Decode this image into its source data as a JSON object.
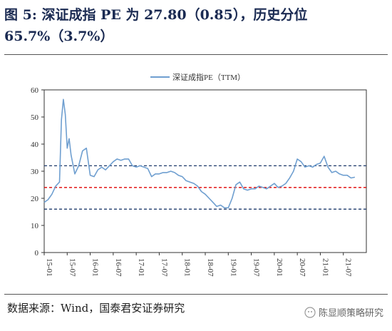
{
  "figure": {
    "title": "图 5: 深证成指 PE 为 27.80（0.85），历史分位 65.7%（3.7%）",
    "source": "数据来源：Wind，国泰君安证券研究",
    "watermark": "陈显顺策略研究"
  },
  "colors": {
    "series": "#6f9fd0",
    "upper_band": "#1f3a6b",
    "mean": "#e00000",
    "lower_band": "#1f3a6b",
    "axis": "#333333"
  },
  "chart_data": {
    "type": "line",
    "legend": "深证成指PE（TTM）",
    "legend_position": "top-center",
    "grid": false,
    "ylim": [
      0,
      60
    ],
    "y_ticks": [
      0,
      10,
      20,
      30,
      40,
      50,
      60
    ],
    "x_ticks": [
      "15-01",
      "15-07",
      "16-01",
      "16-07",
      "17-01",
      "17-07",
      "18-01",
      "18-07",
      "19-01",
      "19-07",
      "20-01",
      "20-07",
      "21-01",
      "21-07"
    ],
    "reference_lines": [
      {
        "name": "upper",
        "value": 32.0,
        "style": "dashed",
        "color": "#1f3a6b"
      },
      {
        "name": "mean",
        "value": 24.0,
        "style": "dashed",
        "color": "#e00000"
      },
      {
        "name": "lower",
        "value": 16.0,
        "style": "dashed",
        "color": "#1f3a6b"
      }
    ],
    "series": [
      {
        "name": "深证成指PE（TTM）",
        "points": [
          [
            "15-01",
            18.5
          ],
          [
            "15-02",
            19.5
          ],
          [
            "15-03",
            21.5
          ],
          [
            "15-04",
            24.5
          ],
          [
            "15-05",
            26.0
          ],
          [
            "15-05b",
            49.0
          ],
          [
            "15-06",
            56.5
          ],
          [
            "15-06b",
            51.0
          ],
          [
            "15-07",
            38.5
          ],
          [
            "15-07b",
            42.0
          ],
          [
            "15-08",
            36.0
          ],
          [
            "15-09",
            29.0
          ],
          [
            "15-10",
            32.0
          ],
          [
            "15-11",
            37.5
          ],
          [
            "15-12",
            38.5
          ],
          [
            "16-01",
            28.5
          ],
          [
            "16-02",
            28.0
          ],
          [
            "16-03",
            30.5
          ],
          [
            "16-04",
            31.5
          ],
          [
            "16-05",
            30.5
          ],
          [
            "16-06",
            32.0
          ],
          [
            "16-07",
            33.5
          ],
          [
            "16-08",
            34.5
          ],
          [
            "16-09",
            34.0
          ],
          [
            "16-10",
            34.5
          ],
          [
            "16-11",
            34.5
          ],
          [
            "16-12",
            32.0
          ],
          [
            "17-01",
            31.5
          ],
          [
            "17-02",
            32.0
          ],
          [
            "17-03",
            31.5
          ],
          [
            "17-04",
            31.0
          ],
          [
            "17-05",
            28.0
          ],
          [
            "17-06",
            29.0
          ],
          [
            "17-07",
            29.0
          ],
          [
            "17-08",
            29.5
          ],
          [
            "17-09",
            29.5
          ],
          [
            "17-10",
            30.0
          ],
          [
            "17-11",
            29.5
          ],
          [
            "17-12",
            28.5
          ],
          [
            "18-01",
            28.0
          ],
          [
            "18-02",
            26.5
          ],
          [
            "18-03",
            26.0
          ],
          [
            "18-04",
            25.5
          ],
          [
            "18-05",
            24.5
          ],
          [
            "18-06",
            22.5
          ],
          [
            "18-07",
            21.5
          ],
          [
            "18-08",
            20.0
          ],
          [
            "18-09",
            18.5
          ],
          [
            "18-10",
            17.0
          ],
          [
            "18-11",
            17.5
          ],
          [
            "18-12",
            16.5
          ],
          [
            "19-01",
            16.5
          ],
          [
            "19-02",
            20.0
          ],
          [
            "19-03",
            25.0
          ],
          [
            "19-04",
            26.0
          ],
          [
            "19-05",
            23.5
          ],
          [
            "19-06",
            23.0
          ],
          [
            "19-07",
            23.5
          ],
          [
            "19-08",
            23.5
          ],
          [
            "19-09",
            24.5
          ],
          [
            "19-10",
            24.0
          ],
          [
            "19-11",
            23.5
          ],
          [
            "19-12",
            24.5
          ],
          [
            "20-01",
            25.5
          ],
          [
            "20-02",
            24.0
          ],
          [
            "20-03",
            24.5
          ],
          [
            "20-04",
            25.5
          ],
          [
            "20-05",
            27.5
          ],
          [
            "20-06",
            30.0
          ],
          [
            "20-07",
            34.5
          ],
          [
            "20-08",
            33.5
          ],
          [
            "20-09",
            31.5
          ],
          [
            "20-10",
            32.0
          ],
          [
            "20-11",
            31.5
          ],
          [
            "20-12",
            32.5
          ],
          [
            "21-01",
            33.0
          ],
          [
            "21-02",
            35.5
          ],
          [
            "21-03",
            31.5
          ],
          [
            "21-04",
            29.5
          ],
          [
            "21-05",
            30.0
          ],
          [
            "21-06",
            29.0
          ],
          [
            "21-07",
            28.5
          ],
          [
            "21-08",
            28.5
          ],
          [
            "21-09",
            27.5
          ],
          [
            "21-10",
            27.8
          ]
        ]
      }
    ]
  }
}
